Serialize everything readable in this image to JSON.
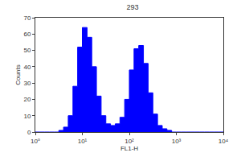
{
  "chart_data": {
    "type": "histogram",
    "title": "293",
    "x_label": "FL1-H",
    "y_label": "Counts",
    "bins": [
      1,
      1.259,
      1.585,
      1.995,
      2.512,
      3.162,
      3.981,
      5.012,
      6.31,
      7.943,
      10,
      12.59,
      15.85,
      19.95,
      25.12,
      31.62,
      39.81,
      50.12,
      63.1,
      79.43,
      100,
      125.9,
      158.5,
      199.5,
      251.2,
      316.2,
      398.1,
      501.2,
      631,
      794.3,
      1000,
      1259,
      1585,
      1995,
      2512,
      3162,
      3981,
      5012,
      6310,
      7943,
      10000
    ],
    "counts": [
      0,
      0,
      0,
      0,
      0,
      1,
      3,
      10,
      28,
      52,
      64,
      58,
      40,
      22,
      10,
      5,
      4,
      5,
      9,
      20,
      38,
      51,
      53,
      42,
      24,
      11,
      4,
      2,
      1,
      0,
      0,
      0,
      0,
      0,
      0,
      0,
      0,
      0,
      0,
      0
    ],
    "color": "#0000ff",
    "log": "x",
    "xlim": [
      1,
      10000
    ],
    "xticks": [
      {
        "value": 1,
        "label": "10⁰"
      },
      {
        "value": 10,
        "label": "10¹"
      },
      {
        "value": 100,
        "label": "10²"
      },
      {
        "value": 1000,
        "label": "10³"
      },
      {
        "value": 10000,
        "label": "10⁴"
      }
    ],
    "ylim": [
      0,
      70
    ],
    "yticks": [
      0,
      10,
      20,
      30,
      40,
      50,
      60,
      70
    ],
    "grid": false
  }
}
